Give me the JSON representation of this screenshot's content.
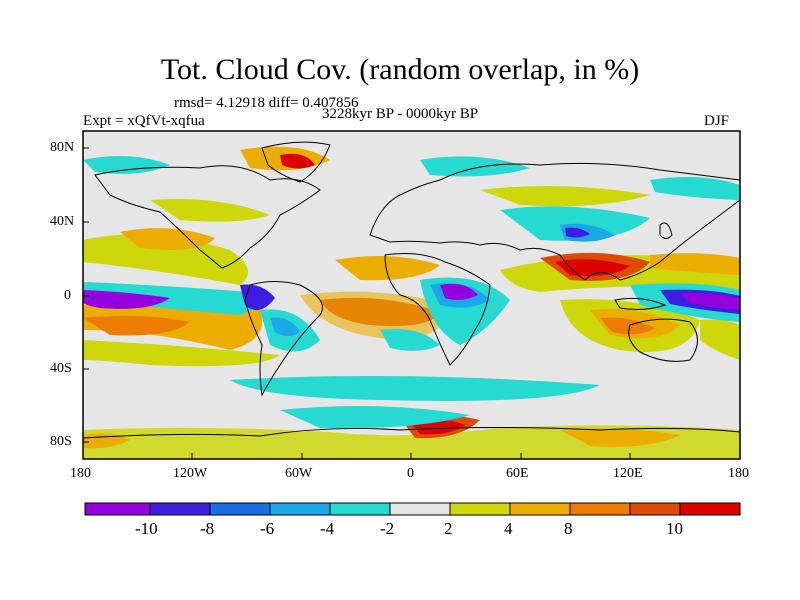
{
  "title": "Tot. Cloud Cov. (random overlap, in %)",
  "stats": "rmsd= 4.12918 diff= 0.407856",
  "experiment": "Expt = xQfVt-xqfua",
  "period": "3228kyr BP - 0000kyr BP",
  "season": "DJF",
  "lat_ticks": [
    "80N",
    "40N",
    "0",
    "40S",
    "80S"
  ],
  "lon_ticks": [
    "180",
    "120W",
    "60W",
    "0",
    "60E",
    "120E",
    "180"
  ],
  "colorbar": {
    "colors": [
      "#9400e0",
      "#3d1ee0",
      "#1a6ee6",
      "#1aa8e8",
      "#26d9d1",
      "#e6e6e6",
      "#cdd70a",
      "#ebae00",
      "#ec7d00",
      "#dd4a00",
      "#dd0000"
    ],
    "labels": [
      "-10",
      "-8",
      "-6",
      "-4",
      "-2",
      "2",
      "4",
      "8",
      "10"
    ]
  }
}
